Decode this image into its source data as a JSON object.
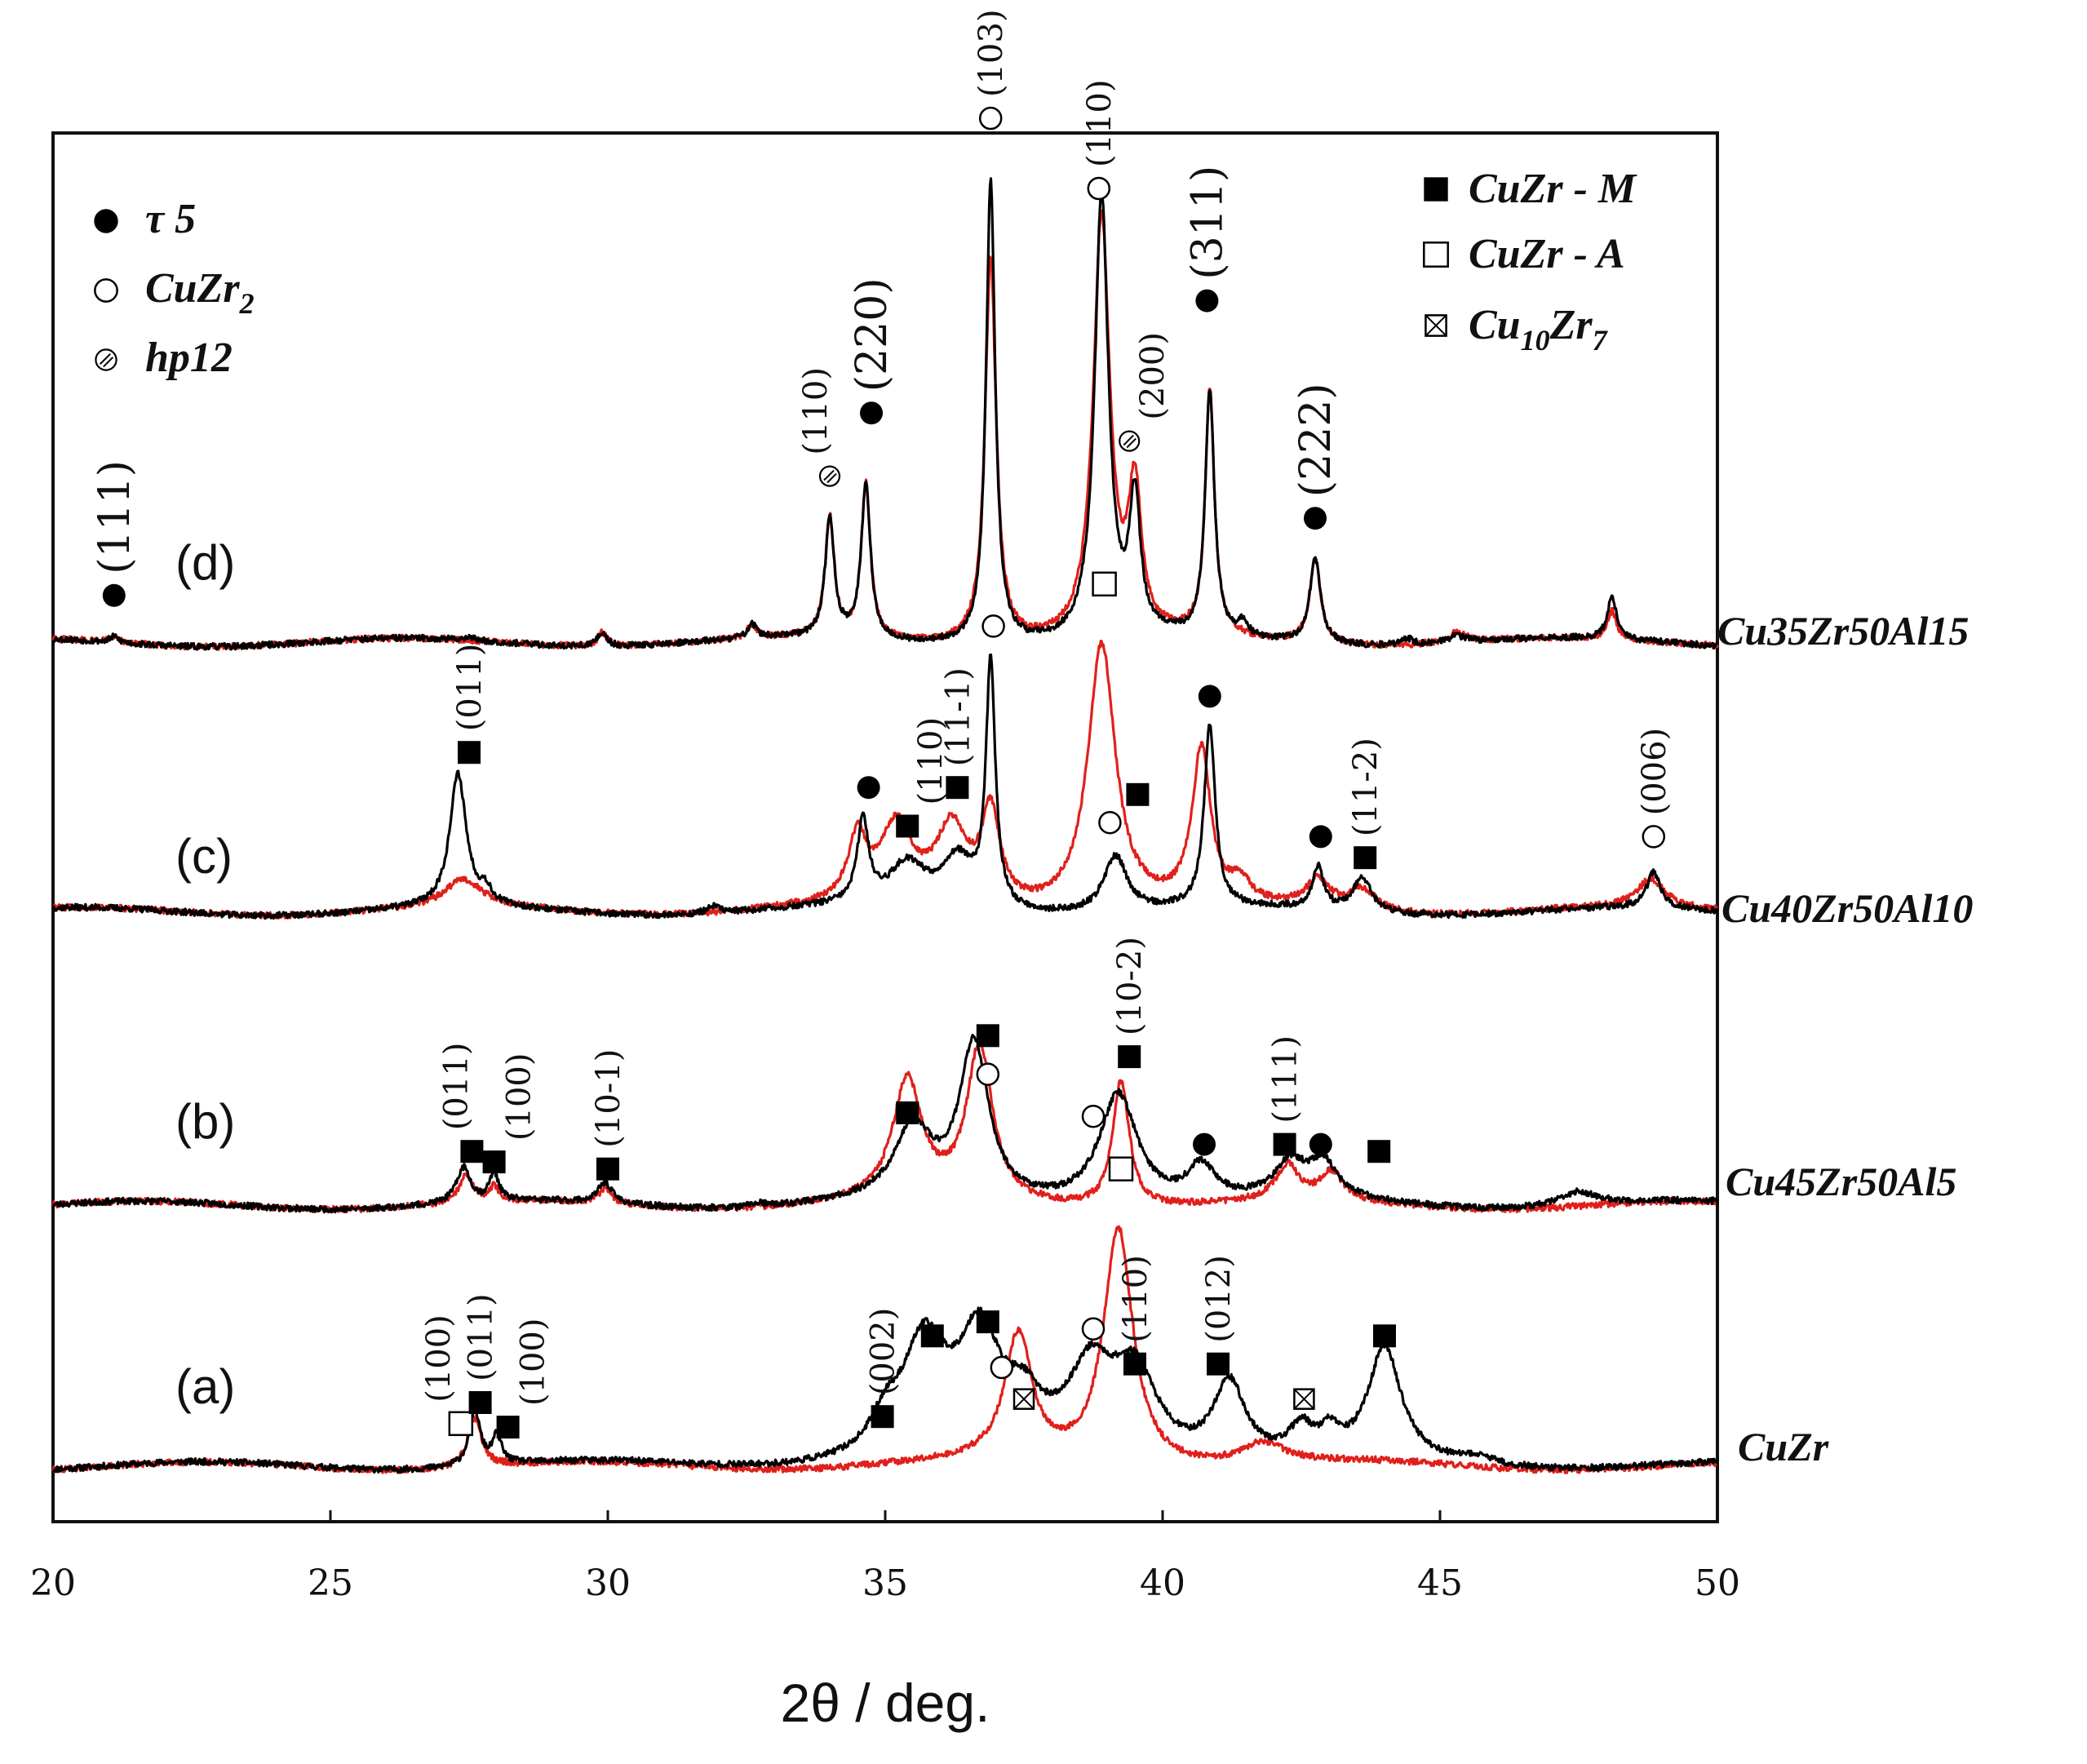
{
  "chart_data": {
    "type": "line",
    "title": "",
    "xlabel": "2θ / deg.",
    "ylabel": "",
    "xlim": [
      20,
      50
    ],
    "xticks": [
      "20",
      "25",
      "30",
      "35",
      "40",
      "45",
      "50"
    ],
    "grid": false,
    "colors": {
      "black_trace": "#000000",
      "red_trace": "#e0201b"
    },
    "legend_left": [
      {
        "symbol": "filled-circle",
        "label": "τ 5"
      },
      {
        "symbol": "open-circle",
        "label": "CuZr",
        "sub": "2"
      },
      {
        "symbol": "hatched-circle",
        "label": "hp12"
      }
    ],
    "legend_right": [
      {
        "symbol": "filled-square",
        "label": "CuZr - M"
      },
      {
        "symbol": "open-square",
        "label": "CuZr - A"
      },
      {
        "symbol": "crossed-square",
        "label": "Cu",
        "sub": "10",
        "label2": "Zr",
        "sub2": "7"
      }
    ],
    "series": [
      {
        "panel": "(a)",
        "name": "CuZr",
        "baseline": 0.9,
        "noise_seed": 11,
        "black_peaks": [
          [
            27.6,
            8,
            0.12
          ],
          [
            28.0,
            4,
            0.1
          ],
          [
            35.0,
            4,
            0.3
          ],
          [
            35.7,
            16,
            0.5
          ],
          [
            36.7,
            16,
            0.45
          ],
          [
            37.5,
            6,
            0.4
          ],
          [
            38.7,
            12,
            0.5
          ],
          [
            39.5,
            12,
            0.5
          ],
          [
            41.2,
            11,
            0.35
          ],
          [
            42.5,
            4,
            0.25
          ],
          [
            43.0,
            3,
            0.2
          ],
          [
            44.0,
            16,
            0.35
          ],
          [
            45.7,
            1,
            0.3
          ]
        ],
        "red_peaks": [
          [
            27.6,
            7,
            0.15
          ],
          [
            37.4,
            18,
            0.3
          ],
          [
            39.2,
            34,
            0.32
          ],
          [
            41.8,
            3,
            0.5
          ]
        ],
        "annotations": [
          {
            "x": 27.35,
            "sym": "open-square",
            "h": 7,
            "hkl": "(100)",
            "hdx": -28
          },
          {
            "x": 27.7,
            "sym": "filled-square",
            "h": 10,
            "hkl": "(011)",
            "hdx": 0
          },
          {
            "x": 28.2,
            "sym": "filled-square",
            "h": 6.5,
            "hkl": "(100)",
            "hdx": 30
          },
          {
            "x": 34.95,
            "sym": "filled-square",
            "h": 8,
            "hkl": "(002)",
            "hdx": 0
          },
          {
            "x": 35.85,
            "sym": "filled-square",
            "h": 19.5,
            "hkl": "",
            "hdx": 0
          },
          {
            "x": 36.85,
            "sym": "filled-square",
            "h": 21.5,
            "hkl": "",
            "hdx": 0
          },
          {
            "x": 37.1,
            "sym": "open-circle",
            "h": 15,
            "hkl": "",
            "hdx": 0
          },
          {
            "x": 37.5,
            "sym": "crossed-square",
            "h": 10.5,
            "hkl": "",
            "hdx": 0
          },
          {
            "x": 38.75,
            "sym": "open-circle",
            "h": 20.5,
            "hkl": "",
            "hdx": 0
          },
          {
            "x": 39.5,
            "sym": "filled-square",
            "h": 15.5,
            "hkl": "(110)",
            "hdx": 0
          },
          {
            "x": 41.0,
            "sym": "filled-square",
            "h": 15.5,
            "hkl": "(012)",
            "hdx": 0
          },
          {
            "x": 42.55,
            "sym": "crossed-square",
            "h": 10.5,
            "hkl": "",
            "hdx": 0
          },
          {
            "x": 44.0,
            "sym": "filled-square",
            "h": 19.5,
            "hkl": "",
            "hdx": 0
          }
        ]
      },
      {
        "panel": "(b)",
        "name": "Cu45Zr50Al5",
        "baseline": 0.3,
        "noise_seed": 23,
        "black_peaks": [
          [
            27.4,
            5,
            0.15
          ],
          [
            27.95,
            4,
            0.1
          ],
          [
            29.95,
            3,
            0.15
          ],
          [
            32.7,
            0.5,
            0.15
          ],
          [
            35.5,
            10,
            0.4
          ],
          [
            36.6,
            22,
            0.32
          ],
          [
            39.2,
            16,
            0.42
          ],
          [
            40.7,
            5,
            0.3
          ],
          [
            42.3,
            5,
            0.35
          ],
          [
            42.9,
            5,
            0.3
          ],
          [
            47.5,
            2,
            0.4
          ]
        ],
        "red_peaks": [
          [
            27.45,
            4,
            0.15
          ],
          [
            27.95,
            2,
            0.1
          ],
          [
            29.95,
            2,
            0.15
          ],
          [
            35.4,
            17,
            0.32
          ],
          [
            36.7,
            22,
            0.28
          ],
          [
            39.25,
            18,
            0.18
          ],
          [
            42.25,
            5,
            0.25
          ],
          [
            43.05,
            4,
            0.25
          ]
        ],
        "annotations": [
          {
            "x": 27.55,
            "sym": "filled-square",
            "h": 8,
            "hkl": "(011)",
            "hdx": -20
          },
          {
            "x": 27.95,
            "sym": "filled-square",
            "h": 6.5,
            "hkl": "(100)",
            "hdx": 30
          },
          {
            "x": 30.0,
            "sym": "filled-square",
            "h": 5.5,
            "hkl": "(10-1)",
            "hdx": 0
          },
          {
            "x": 35.4,
            "sym": "filled-square",
            "h": 13.5,
            "hkl": "",
            "hdx": 0
          },
          {
            "x": 36.85,
            "sym": "filled-square",
            "h": 24.5,
            "hkl": "",
            "hdx": 0
          },
          {
            "x": 36.85,
            "sym": "open-circle",
            "h": 19,
            "hkl": "",
            "hdx": 0
          },
          {
            "x": 38.75,
            "sym": "open-circle",
            "h": 13,
            "hkl": "",
            "hdx": 0
          },
          {
            "x": 39.4,
            "sym": "filled-square",
            "h": 21.5,
            "hkl": "(10-2)",
            "hdx": 0
          },
          {
            "x": 39.25,
            "sym": "open-square",
            "h": 5.5,
            "hkl": "",
            "hdx": 0
          },
          {
            "x": 40.75,
            "sym": "filled-circle",
            "h": 9,
            "hkl": "",
            "hdx": 0
          },
          {
            "x": 42.2,
            "sym": "filled-square",
            "h": 9,
            "hkl": "(111)",
            "hdx": 0
          },
          {
            "x": 42.85,
            "sym": "filled-circle",
            "h": 9,
            "hkl": "",
            "hdx": 0
          },
          {
            "x": 43.9,
            "sym": "filled-square",
            "h": 8,
            "hkl": "",
            "hdx": 0
          }
        ]
      },
      {
        "panel": "(c)",
        "name": "Cu40Zr50Al10",
        "baseline": 0.3,
        "noise_seed": 37,
        "black_peaks": [
          [
            27.3,
            19,
            0.18
          ],
          [
            27.8,
            2,
            0.12
          ],
          [
            31.9,
            1,
            0.15
          ],
          [
            34.6,
            12,
            0.12
          ],
          [
            35.4,
            6,
            0.4
          ],
          [
            36.3,
            7,
            0.35
          ],
          [
            36.9,
            35,
            0.1
          ],
          [
            39.15,
            8,
            0.25
          ],
          [
            40.85,
            26,
            0.12
          ],
          [
            42.8,
            6,
            0.12
          ],
          [
            43.6,
            5,
            0.2
          ],
          [
            48.85,
            5,
            0.15
          ]
        ],
        "red_peaks": [
          [
            27.4,
            4,
            0.4
          ],
          [
            34.5,
            9,
            0.2
          ],
          [
            35.2,
            11,
            0.35
          ],
          [
            36.2,
            11,
            0.35
          ],
          [
            36.9,
            13,
            0.2
          ],
          [
            38.9,
            38,
            0.3
          ],
          [
            40.7,
            22,
            0.2
          ],
          [
            41.4,
            3,
            0.2
          ],
          [
            42.8,
            4,
            0.25
          ],
          [
            43.6,
            3,
            0.3
          ],
          [
            48.8,
            4,
            0.3
          ]
        ],
        "annotations": [
          {
            "x": 27.5,
            "sym": "filled-square",
            "h": 23,
            "hkl": "(011)",
            "hdx": 0
          },
          {
            "x": 34.7,
            "sym": "filled-circle",
            "h": 18,
            "hkl": "",
            "hdx": 0
          },
          {
            "x": 35.4,
            "sym": "filled-square",
            "h": 12.5,
            "hkl": "(110)",
            "hdx": 28
          },
          {
            "x": 36.3,
            "sym": "filled-square",
            "h": 18,
            "hkl": "(11-1)",
            "hdx": 0
          },
          {
            "x": 36.95,
            "sym": "open-circle",
            "h": 41,
            "hkl": "",
            "hdx": 0
          },
          {
            "x": 38.95,
            "sym": "open-square",
            "h": 47,
            "hkl": "",
            "hdx": 0
          },
          {
            "x": 39.55,
            "sym": "filled-square",
            "h": 17,
            "hkl": "",
            "hdx": 0
          },
          {
            "x": 39.05,
            "sym": "open-circle",
            "h": 13,
            "hkl": "",
            "hdx": 0
          },
          {
            "x": 40.85,
            "sym": "filled-circle",
            "h": 31,
            "hkl": "",
            "hdx": 0
          },
          {
            "x": 42.85,
            "sym": "filled-circle",
            "h": 11,
            "hkl": "",
            "hdx": 0
          },
          {
            "x": 43.65,
            "sym": "filled-square",
            "h": 8,
            "hkl": "(11-2)",
            "hdx": 0
          },
          {
            "x": 48.85,
            "sym": "open-circle",
            "h": 11,
            "hkl": "(006)",
            "hdx": 0
          }
        ]
      },
      {
        "panel": "(d)",
        "name": "Cu35Zr50Al15",
        "baseline": 0.3,
        "noise_seed": 53,
        "black_peaks": [
          [
            21.1,
            0.8,
            0.1
          ],
          [
            27.5,
            0.5,
            0.1
          ],
          [
            29.9,
            2,
            0.1
          ],
          [
            32.6,
            2,
            0.1
          ],
          [
            34.0,
            17,
            0.1
          ],
          [
            34.65,
            22,
            0.1
          ],
          [
            36.9,
            66,
            0.1
          ],
          [
            38.9,
            63,
            0.15
          ],
          [
            39.5,
            19,
            0.12
          ],
          [
            40.85,
            35,
            0.1
          ],
          [
            41.45,
            2,
            0.1
          ],
          [
            42.75,
            12,
            0.12
          ],
          [
            44.4,
            1,
            0.12
          ],
          [
            45.3,
            1,
            0.2
          ],
          [
            48.1,
            6,
            0.1
          ]
        ],
        "red_peaks": [
          [
            21.1,
            0.8,
            0.1
          ],
          [
            29.9,
            2,
            0.1
          ],
          [
            32.6,
            2,
            0.1
          ],
          [
            34.0,
            17,
            0.1
          ],
          [
            34.65,
            22,
            0.1
          ],
          [
            36.9,
            55,
            0.12
          ],
          [
            38.9,
            60,
            0.18
          ],
          [
            39.5,
            20,
            0.14
          ],
          [
            40.85,
            35,
            0.1
          ],
          [
            42.75,
            12,
            0.12
          ],
          [
            45.3,
            1.5,
            0.2
          ],
          [
            48.1,
            4,
            0.1
          ]
        ],
        "annotations": [
          {
            "x": 21.1,
            "sym": "filled-circle",
            "h": 7,
            "hkl": "(111)",
            "hdx": 0
          },
          {
            "x": 34.0,
            "sym": "hatched-circle",
            "h": 24,
            "hkl": "(110)",
            "hdx": -18
          },
          {
            "x": 34.75,
            "sym": "filled-circle",
            "h": 33,
            "hkl": "(220)",
            "hdx": 0
          },
          {
            "x": 36.9,
            "sym": "open-circle",
            "h": 75,
            "hkl": "(103)",
            "hdx": 0
          },
          {
            "x": 38.85,
            "sym": "open-circle",
            "h": 65,
            "hkl": "(110)",
            "hdx": 0
          },
          {
            "x": 39.4,
            "sym": "hatched-circle",
            "h": 29,
            "hkl": "(200)",
            "hdx": 28
          },
          {
            "x": 40.8,
            "sym": "filled-circle",
            "h": 49,
            "hkl": "(311)",
            "hdx": 0
          },
          {
            "x": 42.75,
            "sym": "filled-circle",
            "h": 18,
            "hkl": "(222)",
            "hdx": 0
          }
        ]
      }
    ]
  }
}
